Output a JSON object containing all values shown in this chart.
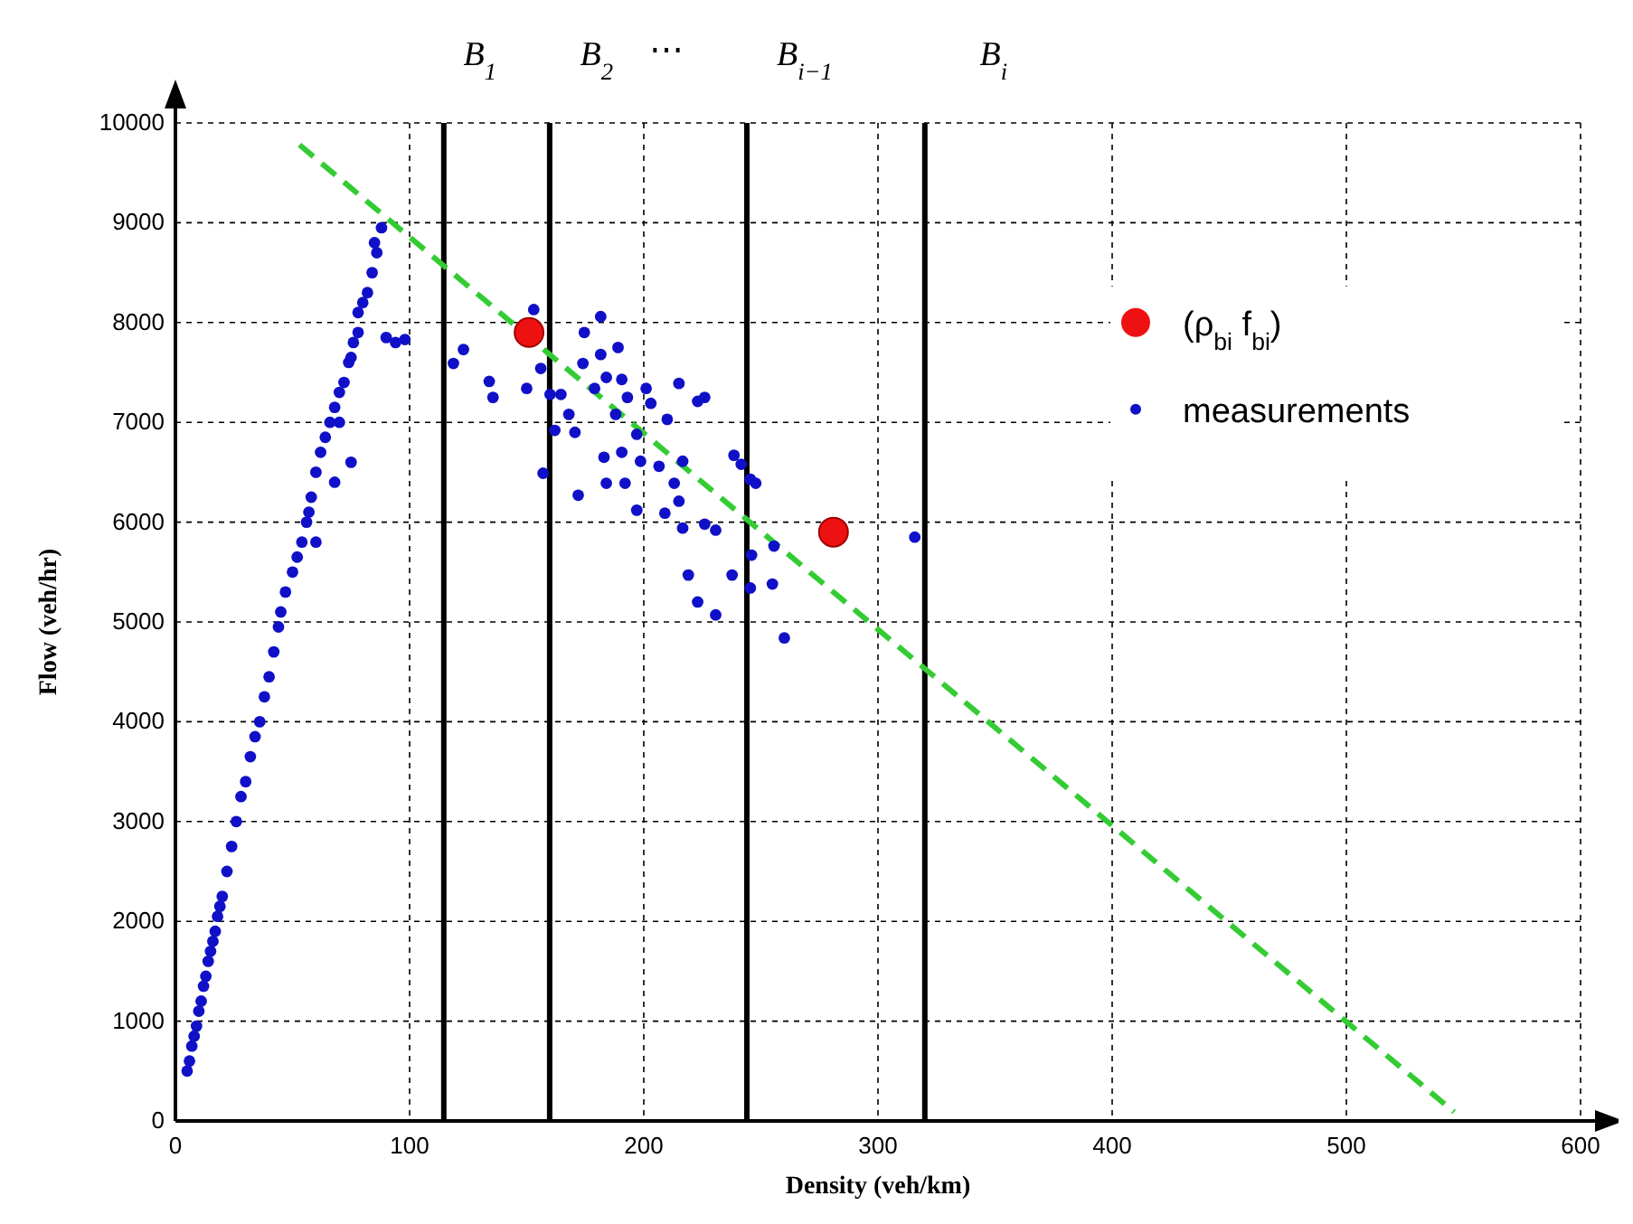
{
  "chart_data": {
    "type": "scatter",
    "xlabel": "Density (veh/km)",
    "ylabel": "Flow (veh/hr)",
    "xlim": [
      0,
      600
    ],
    "ylim": [
      0,
      10000
    ],
    "xticks": [
      0,
      100,
      200,
      300,
      400,
      500,
      600
    ],
    "yticks": [
      0,
      1000,
      2000,
      3000,
      4000,
      5000,
      6000,
      7000,
      8000,
      9000,
      10000
    ],
    "grid": true,
    "legend": "right",
    "series": [
      {
        "type": "line",
        "color": "#33cc33",
        "line_style": "dashed",
        "marker": "none",
        "x": [
          53,
          546
        ],
        "values": [
          9780,
          90
        ]
      },
      {
        "name": "(ρ$_{bi}$  f$_{bi}$)",
        "color": "#ee1111",
        "marker": "circle",
        "x": [
          151,
          281
        ],
        "values": [
          7900,
          5900
        ]
      },
      {
        "name": "measurements",
        "color": "#1010c8",
        "marker": "circle",
        "x": [
          5,
          6,
          7,
          8,
          9,
          10,
          11,
          12,
          13,
          14,
          15,
          16,
          17,
          18,
          19,
          20,
          22,
          24,
          26,
          28,
          30,
          32,
          34,
          36,
          38,
          40,
          42,
          44,
          45,
          47,
          50,
          52,
          54,
          56,
          57,
          58,
          60,
          62,
          64,
          66,
          68,
          70,
          70,
          72,
          74,
          75,
          76,
          78,
          78,
          80,
          82,
          84,
          86,
          88,
          85,
          68,
          75,
          60,
          90,
          94,
          98,
          118.7,
          123,
          134,
          135.6,
          150,
          153,
          157,
          156,
          160,
          162,
          164.6,
          168,
          170.6,
          172,
          174,
          174.6,
          179,
          181.6,
          181.6,
          184,
          184,
          183,
          188,
          189,
          190.6,
          190.6,
          192,
          193,
          197,
          198.6,
          197,
          201,
          203,
          206.5,
          209,
          210,
          213,
          215,
          215,
          216.6,
          216.6,
          219,
          223,
          226,
          223,
          226,
          230.7,
          230.7,
          237.7,
          238.5,
          241.6,
          245.5,
          246,
          247.8,
          245.5,
          254.9,
          255.6,
          315.7,
          260
        ],
        "values": [
          500,
          600,
          750,
          850,
          950,
          1100,
          1200,
          1350,
          1450,
          1600,
          1700,
          1800,
          1900,
          2050,
          2150,
          2250,
          2500,
          2750,
          3000,
          3250,
          3400,
          3650,
          3850,
          4000,
          4250,
          4450,
          4700,
          4950,
          5100,
          5300,
          5500,
          5650,
          5800,
          6000,
          6100,
          6250,
          6500,
          6700,
          6850,
          7000,
          7150,
          7000,
          7300,
          7400,
          7600,
          7650,
          7800,
          7900,
          8100,
          8200,
          8300,
          8500,
          8700,
          8950,
          8800,
          6400,
          6600,
          5800,
          7850,
          7800,
          7830,
          7590,
          7730,
          7410,
          7250,
          7340,
          8130,
          6490,
          7540,
          7280,
          6920,
          7280,
          7080,
          6900,
          6270,
          7590,
          7900,
          7340,
          8060,
          7680,
          7450,
          6390,
          6650,
          7080,
          7750,
          7430,
          6700,
          6390,
          7250,
          6880,
          6610,
          6120,
          7340,
          7190,
          6560,
          6090,
          7030,
          6390,
          7390,
          6210,
          6610,
          5940,
          5470,
          7210,
          7250,
          5200,
          5980,
          5920,
          5070,
          5470,
          6670,
          6580,
          6430,
          5670,
          6390,
          5340,
          5380,
          5760,
          5850,
          4840
        ]
      }
    ],
    "ref_lines": [
      {
        "axis": "x",
        "value": 114.6,
        "label": "B$_{1}$",
        "color": "#000000",
        "line_style": "solid"
      },
      {
        "axis": "x",
        "value": 159.8,
        "label": "B$_{2}$",
        "color": "#000000",
        "line_style": "solid"
      },
      {
        "axis": "x",
        "value": 244,
        "label": "B$_{i−1}$",
        "color": "#000000",
        "line_style": "solid"
      },
      {
        "axis": "x",
        "value": 320,
        "label": "B$_{i}$",
        "color": "#000000",
        "line_style": "solid"
      }
    ],
    "annotations": [
      "⋯"
    ]
  }
}
